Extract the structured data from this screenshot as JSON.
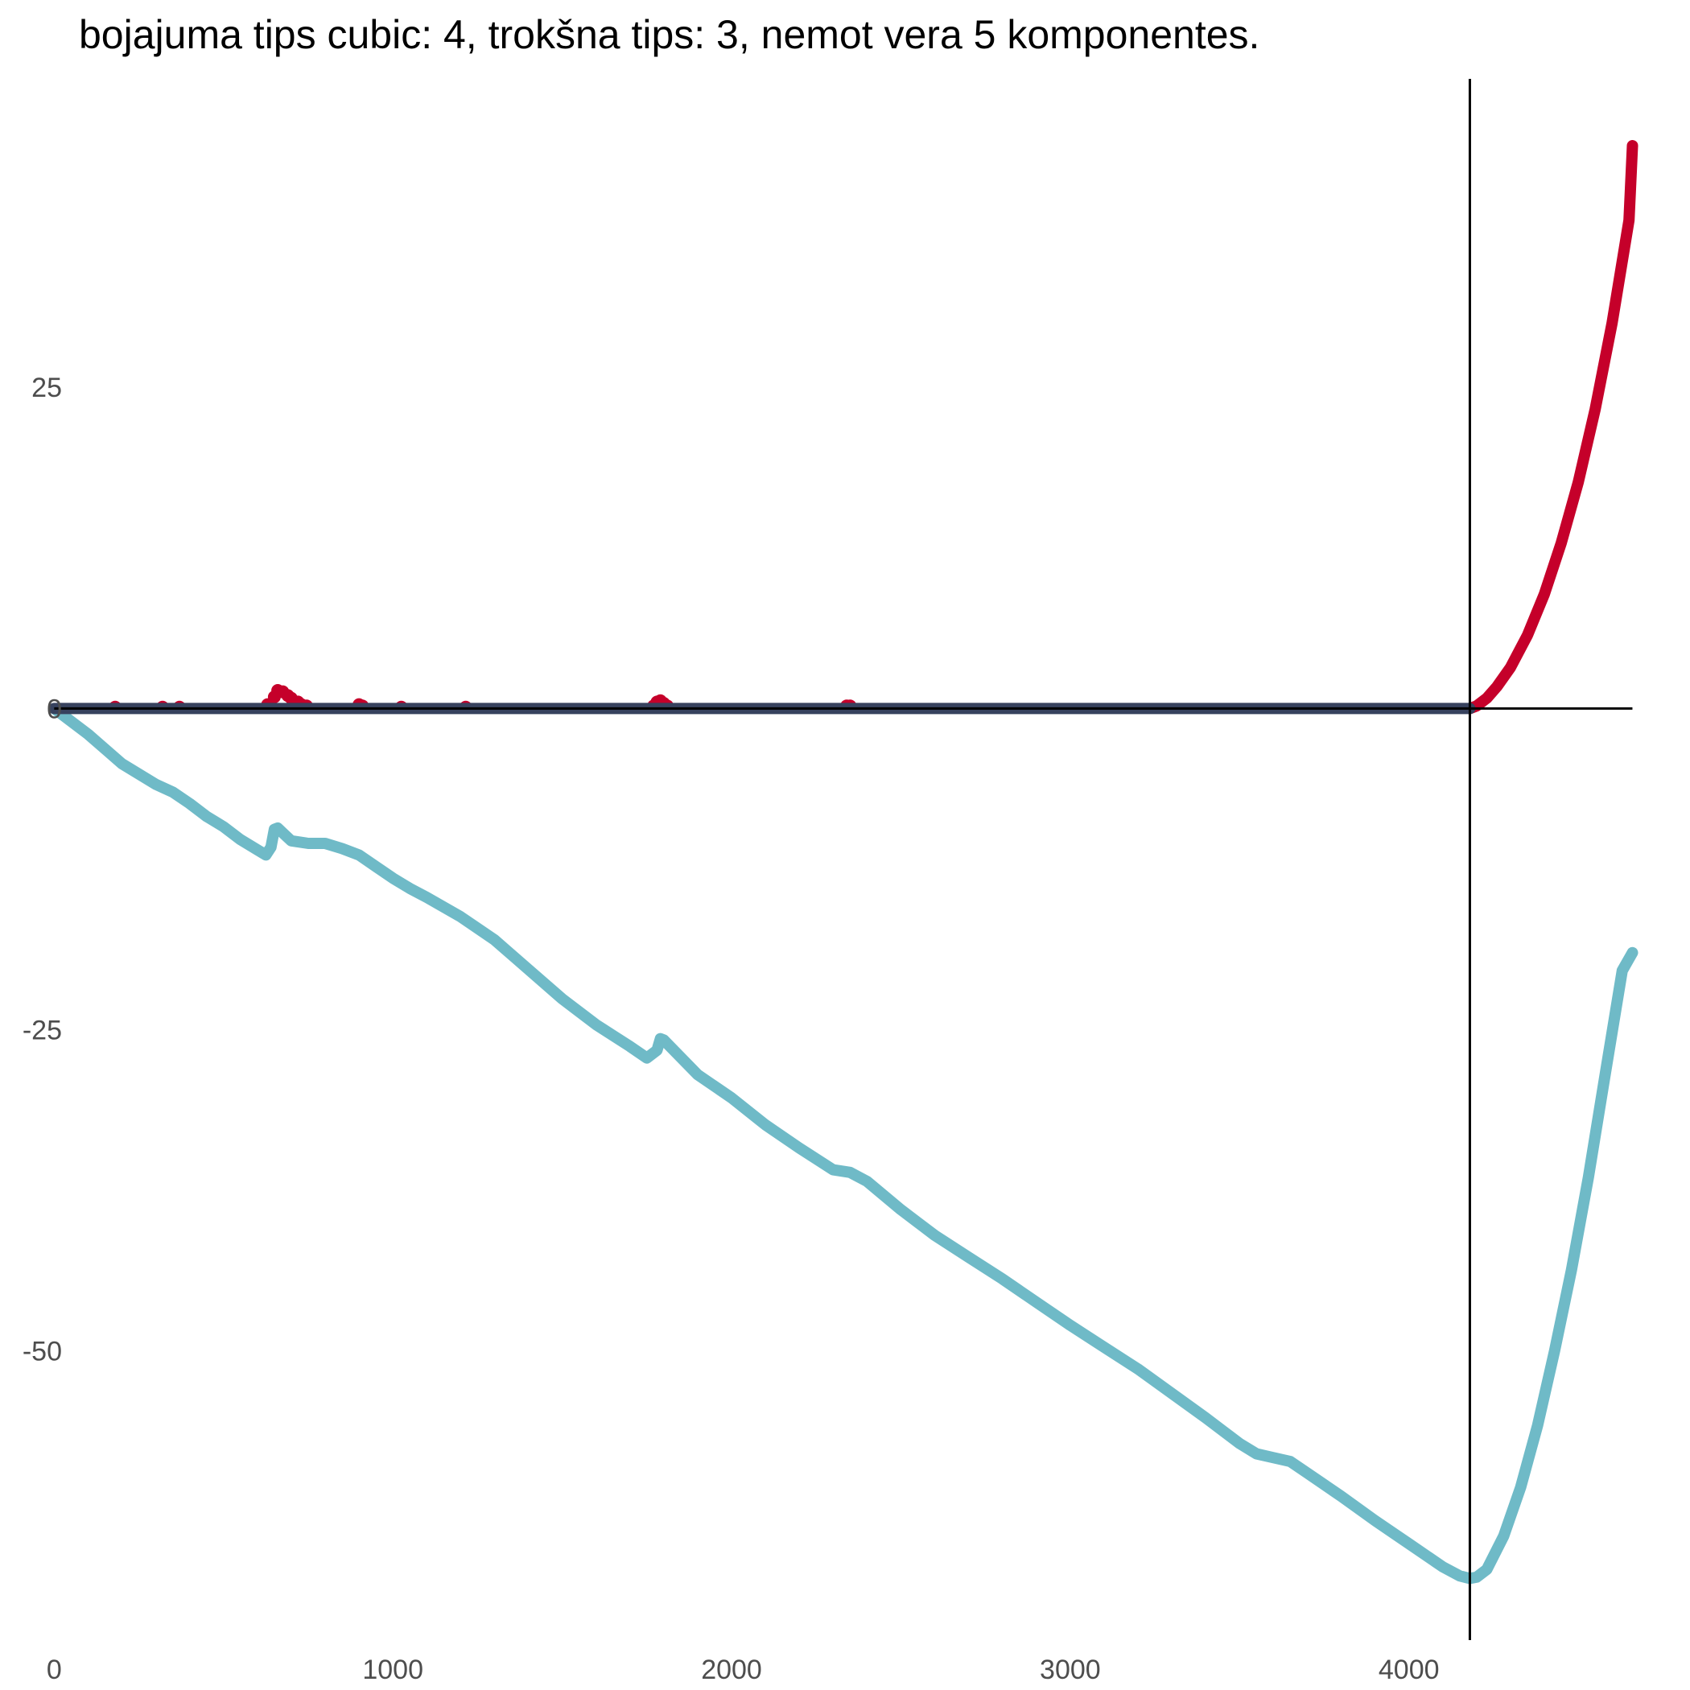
{
  "chart_data": {
    "type": "line",
    "title": "bojajuma tips cubic: 4, trokšna tips: 3, nemot vera 5 komponentes.",
    "xlabel": "",
    "ylabel": "",
    "xlim": [
      -160,
      4830
    ],
    "ylim": [
      -72.5,
      49
    ],
    "x_ticks": [
      0,
      1000,
      2000,
      3000,
      4000
    ],
    "y_ticks": [
      -50,
      -25,
      0,
      25
    ],
    "grid": false,
    "legend": "none",
    "reference_lines": {
      "vertical_x": 4180,
      "horizontal_y": 0
    },
    "series": [
      {
        "color": "#6fbac7",
        "style": "line",
        "x": [
          0,
          100,
          200,
          300,
          350,
          400,
          450,
          500,
          550,
          600,
          625,
          640,
          650,
          660,
          680,
          700,
          750,
          800,
          850,
          900,
          950,
          1000,
          1050,
          1100,
          1200,
          1300,
          1400,
          1500,
          1600,
          1700,
          1750,
          1780,
          1790,
          1800,
          1900,
          2000,
          2100,
          2200,
          2300,
          2350,
          2400,
          2500,
          2600,
          2700,
          2800,
          2900,
          3000,
          3100,
          3200,
          3300,
          3400,
          3500,
          3550,
          3600,
          3650,
          3700,
          3800,
          3900,
          4000,
          4100,
          4150,
          4180,
          4200,
          4230,
          4280,
          4330,
          4380,
          4430,
          4480,
          4530,
          4580,
          4630,
          4660
        ],
        "y": [
          0,
          -2,
          -4.3,
          -5.9,
          -6.5,
          -7.4,
          -8.4,
          -9.2,
          -10.2,
          -11.0,
          -11.4,
          -10.8,
          -9.4,
          -9.3,
          -9.8,
          -10.3,
          -10.5,
          -10.5,
          -10.9,
          -11.4,
          -12.3,
          -13.2,
          -14.0,
          -14.7,
          -16.2,
          -18.0,
          -20.3,
          -22.6,
          -24.6,
          -26.3,
          -27.2,
          -26.6,
          -25.7,
          -25.8,
          -28.5,
          -30.3,
          -32.4,
          -34.2,
          -35.9,
          -36.1,
          -36.8,
          -39.0,
          -41.0,
          -42.7,
          -44.4,
          -46.2,
          -48.0,
          -49.7,
          -51.4,
          -53.3,
          -55.2,
          -57.2,
          -58.0,
          -58.3,
          -58.6,
          -59.5,
          -61.3,
          -63.2,
          -65.0,
          -66.8,
          -67.5,
          -67.7,
          -67.6,
          -67.0,
          -64.4,
          -60.6,
          -55.8,
          -50.0,
          -43.7,
          -36.5,
          -28.4,
          -20.4,
          -19.0
        ]
      },
      {
        "color": "#c5002a",
        "style": "line",
        "x": [
          4180,
          4200,
          4230,
          4260,
          4300,
          4350,
          4400,
          4450,
          4500,
          4550,
          4600,
          4650,
          4660
        ],
        "y": [
          0,
          0.2,
          0.8,
          1.7,
          3.2,
          5.7,
          8.9,
          12.9,
          17.6,
          23.3,
          30.0,
          38.0,
          43.8
        ]
      },
      {
        "color": "#c5002a",
        "style": "points",
        "x": [
          180,
          320,
          370,
          630,
          650,
          660,
          675,
          690,
          700,
          720,
          730,
          745,
          900,
          910,
          1025,
          1215,
          1770,
          1780,
          1790,
          1800,
          1810,
          2340,
          2350
        ],
        "y": [
          0.1,
          0.1,
          0.1,
          0.3,
          0.9,
          1.4,
          1.3,
          1.0,
          0.8,
          0.5,
          0.3,
          0.2,
          0.3,
          0.2,
          0.1,
          0.1,
          0.2,
          0.5,
          0.6,
          0.4,
          0.2,
          0.2,
          0.2
        ]
      },
      {
        "color": "#37425e",
        "style": "line",
        "x": [
          0,
          4180
        ],
        "y": [
          0,
          0
        ]
      }
    ]
  }
}
